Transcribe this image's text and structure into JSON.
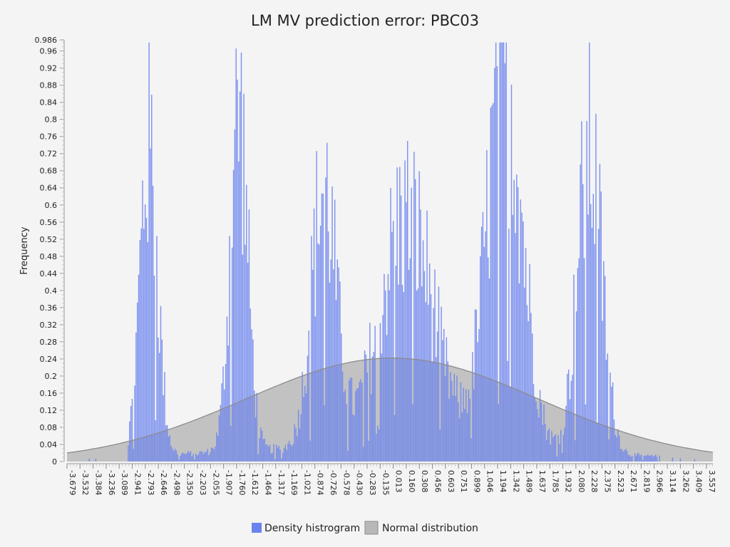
{
  "chart_data": {
    "type": "bar",
    "title": "LM MV prediction error: PBC03",
    "ylabel": "Frequency",
    "xlabel": "",
    "xlim": [
      -3.679,
      3.63
    ],
    "ylim": [
      0,
      0.986
    ],
    "y_ticks": [
      "0",
      "0.04",
      "0.08",
      "0.12",
      "0.16",
      "0.2",
      "0.24",
      "0.28",
      "0.32",
      "0.36",
      "0.4",
      "0.44",
      "0.48",
      "0.52",
      "0.56",
      "0.6",
      "0.64",
      "0.68",
      "0.72",
      "0.76",
      "0.8",
      "0.84",
      "0.88",
      "0.92",
      "0.96",
      "0.986"
    ],
    "x_ticks": [
      "-3.679",
      "-3.532",
      "-3.384",
      "-3.236",
      "-3.089",
      "-2.941",
      "-2.793",
      "-2.646",
      "-2.498",
      "-2.350",
      "-2.203",
      "-2.055",
      "-1.907",
      "-1.760",
      "-1.612",
      "-1.464",
      "-1.317",
      "-1.169",
      "-1.021",
      "-0.874",
      "-0.726",
      "-0.578",
      "-0.430",
      "-0.283",
      "-0.135",
      "0.013",
      "0.160",
      "0.308",
      "0.456",
      "0.603",
      "0.751",
      "0.899",
      "1.046",
      "1.194",
      "1.342",
      "1.489",
      "1.637",
      "1.785",
      "1.932",
      "2.080",
      "2.228",
      "2.375",
      "2.523",
      "2.671",
      "2.819",
      "2.966",
      "3.114",
      "3.262",
      "3.409",
      "3.557"
    ],
    "series": [
      {
        "name": "Density histrogram",
        "kind": "bars",
        "color": "#6b83ee",
        "peaks": [
          {
            "x": -2.76,
            "height": 0.8,
            "width": 0.1
          },
          {
            "x": -1.74,
            "height": 0.88,
            "width": 0.1
          },
          {
            "x": -0.78,
            "height": 0.67,
            "width": 0.14
          },
          {
            "x": 0.16,
            "height": 0.6,
            "width": 0.3
          },
          {
            "x": 1.27,
            "height": 0.98,
            "width": 0.2
          },
          {
            "x": 2.23,
            "height": 0.78,
            "width": 0.14
          }
        ],
        "bin_width": 0.0147,
        "x_range": [
          -3.55,
          3.45
        ]
      },
      {
        "name": "Normal distribution",
        "kind": "area",
        "color": "#9e9e9e",
        "mean": 0.0,
        "sd": 1.65,
        "peak_density": 0.242
      }
    ],
    "legend": "bottom-center"
  }
}
